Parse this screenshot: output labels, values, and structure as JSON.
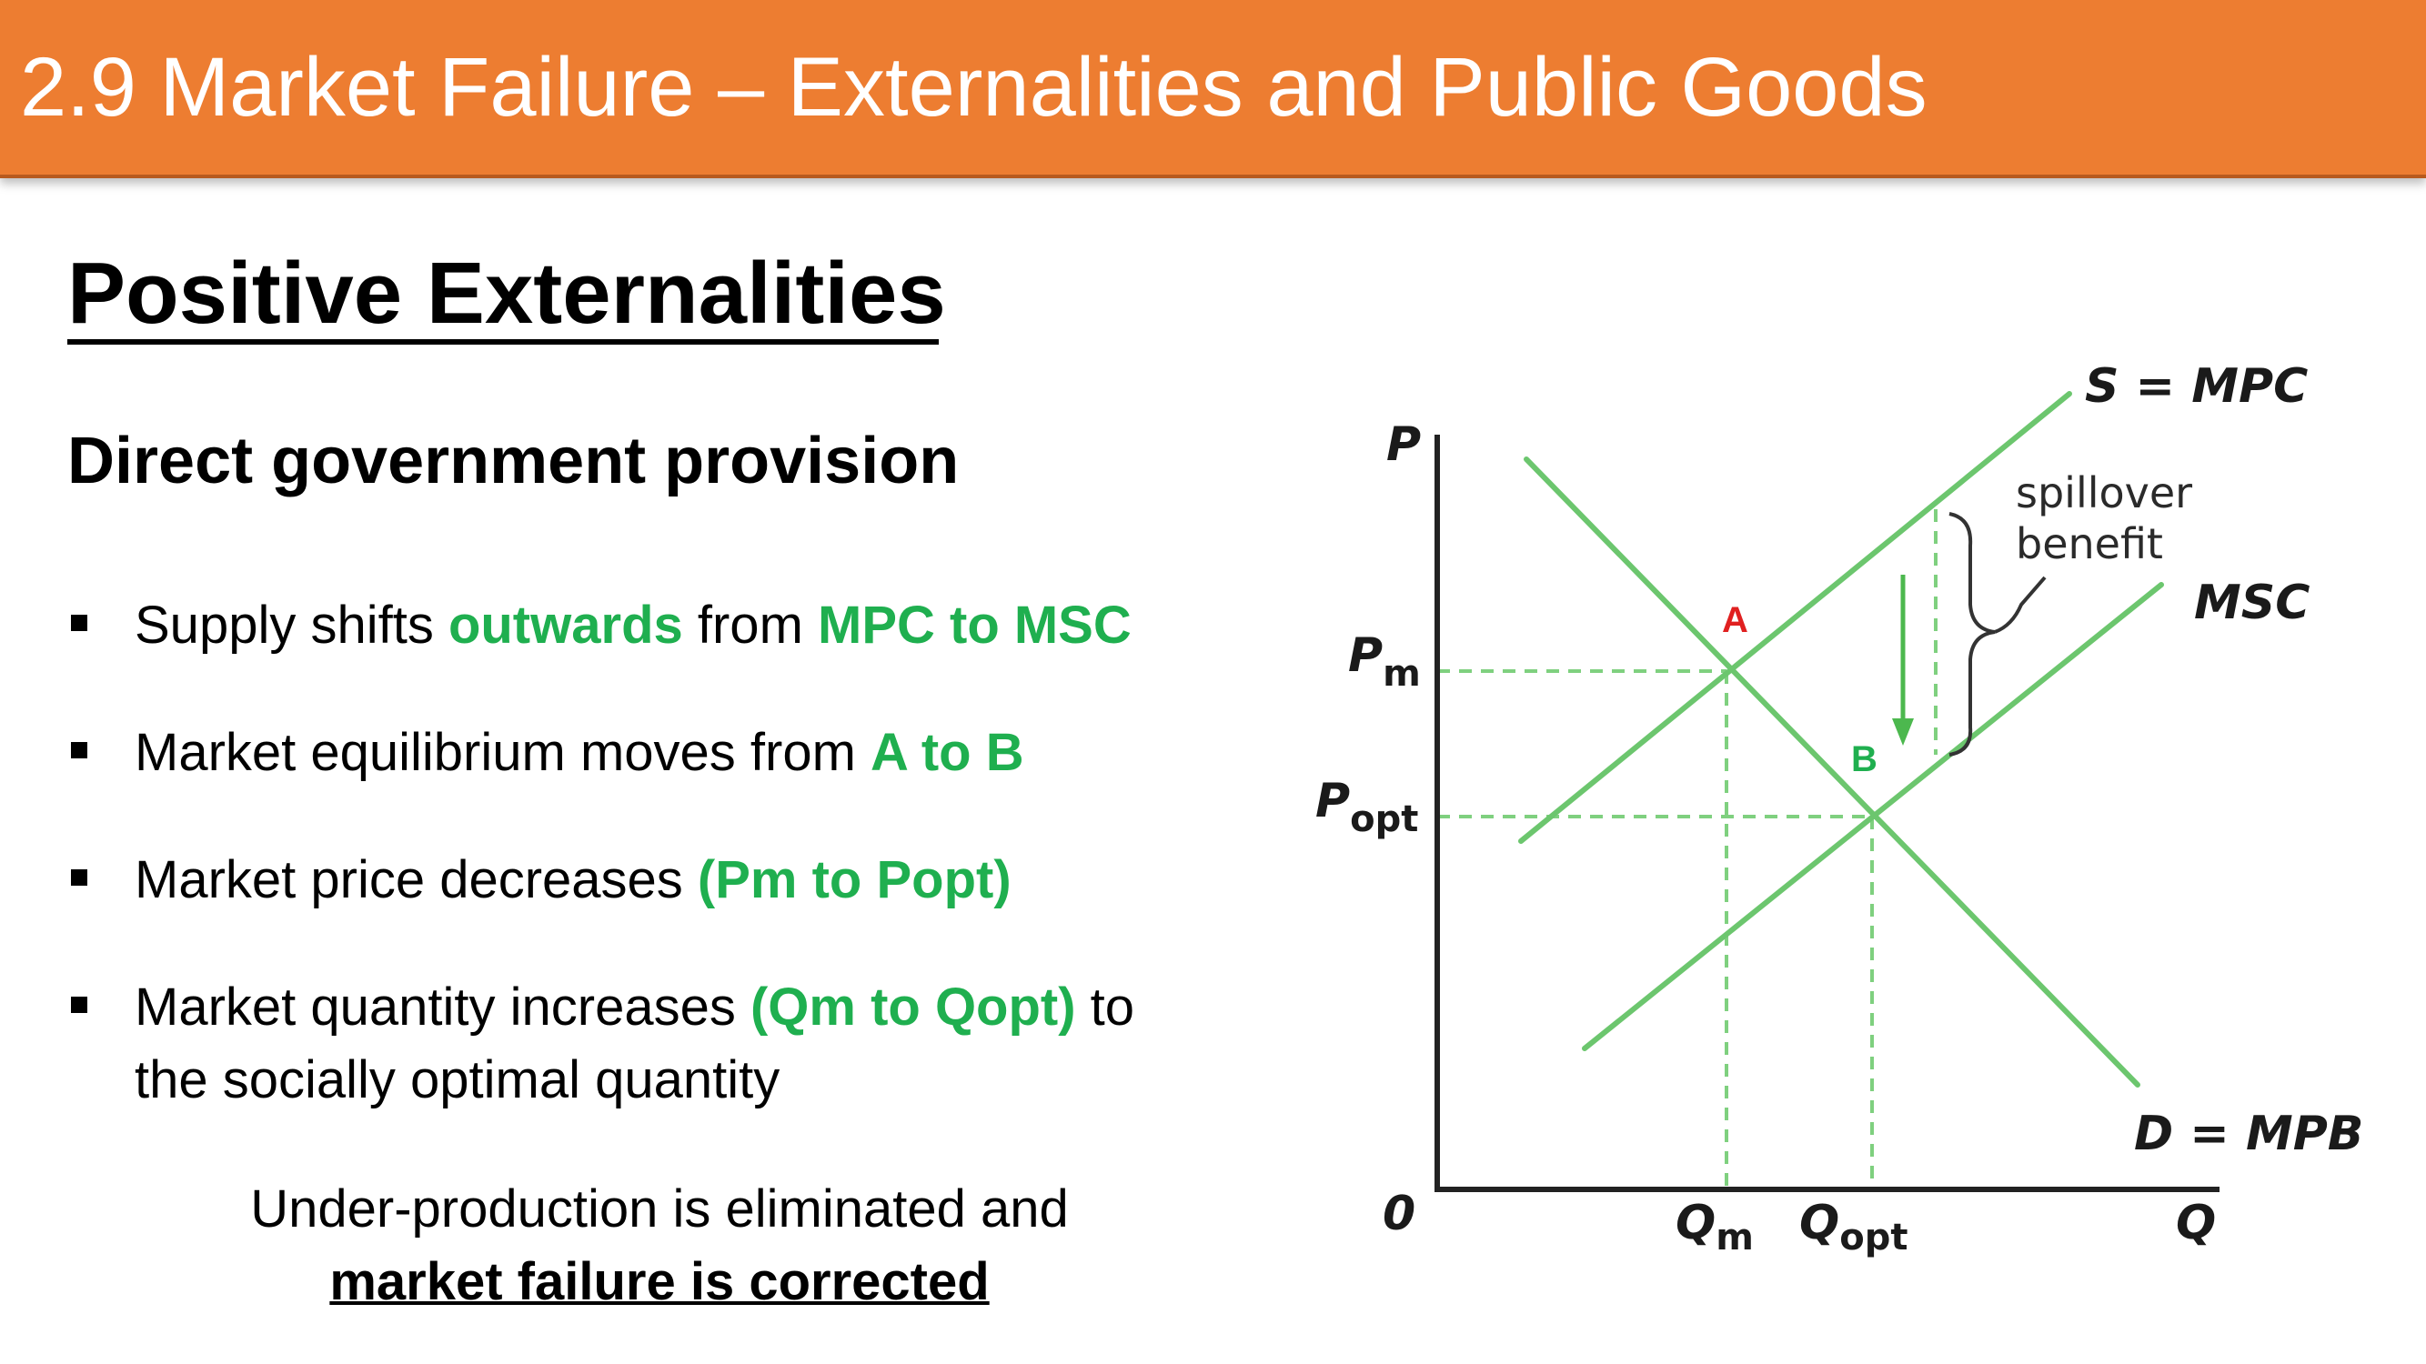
{
  "slide": {
    "title": "2.9 Market Failure – Externalities and Public Goods",
    "heading": "Positive Externalities",
    "subheading": "Direct government provision",
    "bullets": [
      {
        "parts": [
          {
            "t": "Supply shifts "
          },
          {
            "t": "outwards",
            "g": true
          },
          {
            "t": " from "
          },
          {
            "t": "MPC to MSC",
            "g": true
          }
        ]
      },
      {
        "parts": [
          {
            "t": "Market equilibrium moves from "
          },
          {
            "t": "A to B",
            "g": true
          }
        ]
      },
      {
        "parts": [
          {
            "t": "Market price decreases "
          },
          {
            "t": "(Pm to Popt)",
            "g": true
          }
        ]
      },
      {
        "parts": [
          {
            "t": "Market quantity increases "
          },
          {
            "t": "(Qm to Qopt)",
            "g": true
          },
          {
            "t": " to"
          }
        ],
        "line2": "the socially optimal quantity"
      }
    ],
    "conclusion_line1": "Under-production is eliminated and",
    "conclusion_line2": "market failure is corrected"
  },
  "colors": {
    "banner": "#ED7D31",
    "highlight": "#1FAF4F",
    "curve": "#6CC66E",
    "point_a": "#E02020",
    "point_b": "#1FAF4F"
  },
  "diagram": {
    "y_axis_label": "P",
    "x_axis_label": "Q",
    "origin_label": "0",
    "price_labels": [
      {
        "main": "P",
        "sub": "m"
      },
      {
        "main": "P",
        "sub": "opt"
      }
    ],
    "quantity_labels": [
      {
        "main": "Q",
        "sub": "m"
      },
      {
        "main": "Q",
        "sub": "opt"
      }
    ],
    "curves": {
      "supply": "S = MPC",
      "msc": "MSC",
      "demand": "D = MPB"
    },
    "points": {
      "a": "A",
      "b": "B"
    },
    "spillover_line1": "spillover",
    "spillover_line2": "benefit"
  }
}
